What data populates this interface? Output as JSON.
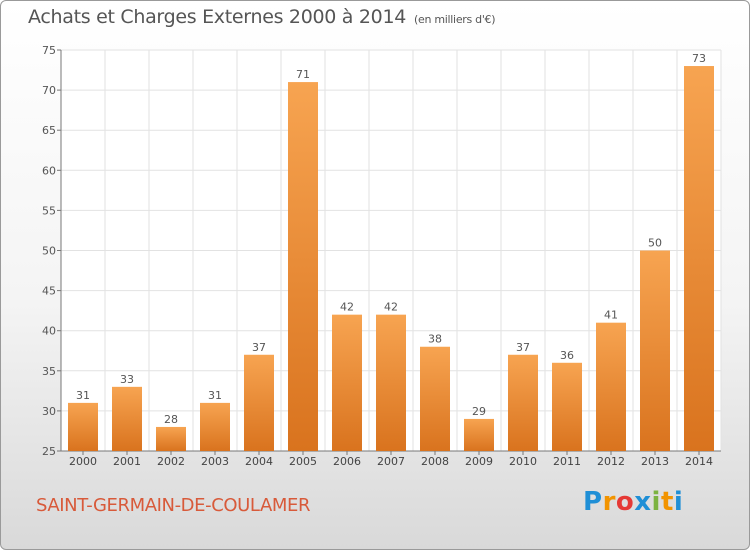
{
  "header": {
    "title": "Achats et Charges Externes 2000 à 2014",
    "unit": "(en milliers d'€)"
  },
  "footer": {
    "town": "SAINT-GERMAIN-DE-COULAMER",
    "logo_text": "Proxiti"
  },
  "colors": {
    "bar_light": "#f7a451",
    "bar_dark": "#d9731e",
    "town_text": "#d85a3a"
  },
  "chart_data": {
    "type": "bar",
    "title": "Achats et Charges Externes 2000 à 2014",
    "xlabel": "",
    "ylabel": "",
    "categories": [
      "2000",
      "2001",
      "2002",
      "2003",
      "2004",
      "2005",
      "2006",
      "2007",
      "2008",
      "2009",
      "2010",
      "2011",
      "2012",
      "2013",
      "2014"
    ],
    "values": [
      31,
      33,
      28,
      31,
      37,
      71,
      42,
      42,
      38,
      29,
      37,
      36,
      41,
      50,
      73
    ],
    "ylim": [
      25,
      75
    ],
    "yticks": [
      25,
      30,
      35,
      40,
      45,
      50,
      55,
      60,
      65,
      70,
      75
    ],
    "grid": true,
    "data_labels": true
  }
}
